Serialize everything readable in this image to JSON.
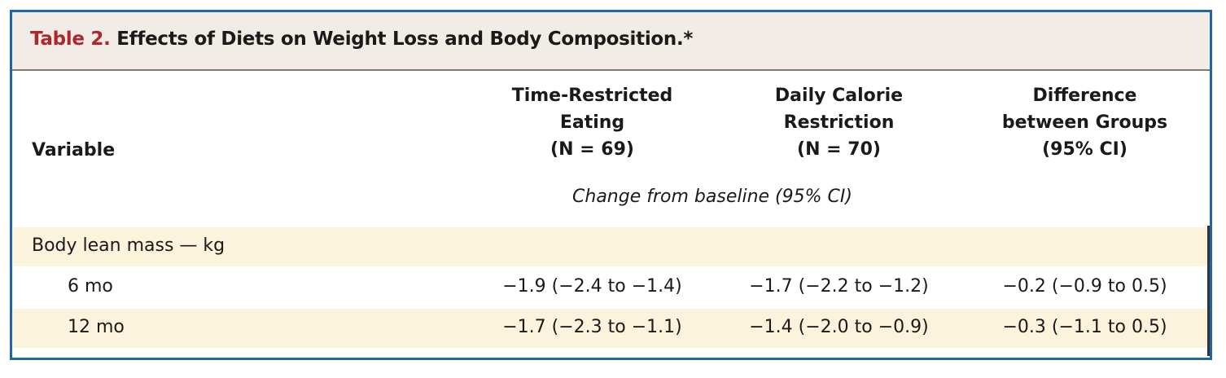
{
  "table": {
    "label": "Table 2.",
    "title": "Effects of Diets on Weight Loss and Body Composition.*",
    "columns": {
      "variable": "Variable",
      "tre": [
        "Time-Restricted",
        "Eating",
        "(N = 69)"
      ],
      "dcr": [
        "Daily Calorie",
        "Restriction",
        "(N = 70)"
      ],
      "diff": [
        "Difference",
        "between Groups",
        "(95% CI)"
      ]
    },
    "subheader": "Change from baseline (95% CI)",
    "rows": [
      {
        "name": "Body lean mass — kg",
        "tre": "",
        "dcr": "",
        "diff": ""
      },
      {
        "name": "6 mo",
        "tre": "−1.9 (−2.4 to −1.4)",
        "dcr": "−1.7 (−2.2 to −1.2)",
        "diff": "−0.2 (−0.9 to 0.5)"
      },
      {
        "name": "12 mo",
        "tre": "−1.7 (−2.3 to −1.1)",
        "dcr": "−1.4 (−2.0 to −0.9)",
        "diff": "−0.3 (−1.1 to 0.5)"
      }
    ]
  }
}
